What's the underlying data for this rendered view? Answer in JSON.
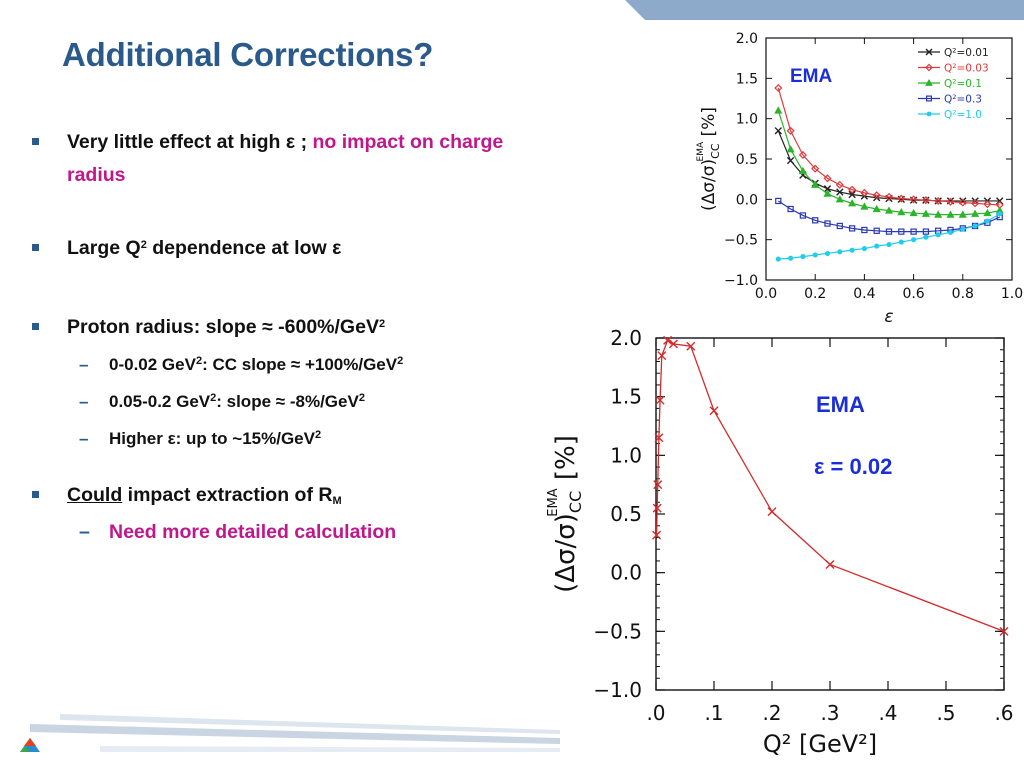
{
  "slide": {
    "title": "Additional Corrections?",
    "accent": "#2a5a8c",
    "highlight": "#c0178d"
  },
  "bullets": {
    "b1_a": "Very little effect at high ",
    "b1_eps": "ε",
    "b1_b": " ; ",
    "b1_mag": "no impact on charge radius",
    "b2_a": "Large Q",
    "b2_sup": "2",
    "b2_b": " dependence at low ",
    "b2_eps": "ε",
    "b3_a": "Proton radius: slope ",
    "b3_approx": "≈",
    "b3_b": " -600%/GeV",
    "b3_sup": "2",
    "s1_a": "0-0.02 GeV",
    "s1_sup": "2",
    "s1_b": ": CC slope ",
    "s1_approx": "≈",
    "s1_c": " +100%/GeV",
    "s1_sup2": "2",
    "s2_a": "0.05-0.2 GeV",
    "s2_sup": "2",
    "s2_b": ":  slope ",
    "s2_approx": "≈",
    "s2_c": " -8%/GeV",
    "s2_sup2": "2",
    "s3_a": "Higher ",
    "s3_eps": "ε",
    "s3_b": ":  up to ~15%/GeV",
    "s3_sup": "2",
    "b4_under": "Could",
    "b4_b": " impact extraction of R",
    "b4_sub": "M",
    "s4": "Need more detailed calculation",
    "dash": "–"
  },
  "chart_data": [
    {
      "type": "line",
      "xlabel": "ε",
      "ylabel": "(Δσ/σ)",
      "ylabel_sub": "CC",
      "ylabel_sup": "EMA",
      "ylabel_unit": "[%]",
      "xlim": [
        0,
        1
      ],
      "ylim": [
        -1,
        2
      ],
      "x_ticks": [
        "0.0",
        "0.2",
        "0.4",
        "0.6",
        "0.8",
        "1.0"
      ],
      "y_ticks": [
        "2.0",
        "1.5",
        "1.0",
        "0.5",
        "0.0",
        "−0.5",
        "−1.0"
      ],
      "annotation": "EMA",
      "legend_position": "top-right",
      "x": [
        0.05,
        0.1,
        0.15,
        0.2,
        0.25,
        0.3,
        0.35,
        0.4,
        0.45,
        0.5,
        0.55,
        0.6,
        0.65,
        0.7,
        0.75,
        0.8,
        0.85,
        0.9,
        0.95
      ],
      "series": [
        {
          "name": "Q²=0.01",
          "color": "#222222",
          "marker": "x",
          "values": [
            0.85,
            0.48,
            0.3,
            0.2,
            0.13,
            0.09,
            0.06,
            0.04,
            0.02,
            0.01,
            0.0,
            -0.01,
            -0.01,
            -0.02,
            -0.02,
            -0.02,
            -0.02,
            -0.02,
            -0.02
          ]
        },
        {
          "name": "Q²=0.03",
          "color": "#e03a3a",
          "marker": "diamond",
          "values": [
            1.38,
            0.85,
            0.55,
            0.38,
            0.26,
            0.18,
            0.12,
            0.08,
            0.05,
            0.03,
            0.01,
            0.0,
            -0.01,
            -0.02,
            -0.03,
            -0.04,
            -0.05,
            -0.06,
            -0.07
          ]
        },
        {
          "name": "Q²=0.1",
          "color": "#2ab52a",
          "marker": "triangle",
          "values": [
            1.1,
            0.62,
            0.35,
            0.18,
            0.07,
            0.0,
            -0.05,
            -0.09,
            -0.12,
            -0.14,
            -0.16,
            -0.17,
            -0.18,
            -0.19,
            -0.19,
            -0.19,
            -0.18,
            -0.17,
            -0.14
          ]
        },
        {
          "name": "Q²=0.3",
          "color": "#2a3ab5",
          "marker": "square",
          "values": [
            -0.02,
            -0.12,
            -0.2,
            -0.26,
            -0.3,
            -0.33,
            -0.36,
            -0.38,
            -0.39,
            -0.4,
            -0.4,
            -0.4,
            -0.4,
            -0.39,
            -0.38,
            -0.36,
            -0.33,
            -0.29,
            -0.22
          ]
        },
        {
          "name": "Q²=1.0",
          "color": "#22ccee",
          "marker": "star",
          "values": [
            -0.74,
            -0.73,
            -0.71,
            -0.69,
            -0.67,
            -0.65,
            -0.63,
            -0.61,
            -0.58,
            -0.56,
            -0.53,
            -0.5,
            -0.47,
            -0.44,
            -0.41,
            -0.37,
            -0.33,
            -0.27,
            -0.18
          ]
        }
      ]
    },
    {
      "type": "line",
      "xlabel": "Q² [GeV²]",
      "ylabel": "(Δσ/σ)",
      "ylabel_sub": "CC",
      "ylabel_sup": "EMA",
      "ylabel_unit": "[%]",
      "xlim": [
        0,
        0.6
      ],
      "ylim": [
        -1,
        2
      ],
      "x_ticks": [
        ".0",
        ".1",
        ".2",
        ".3",
        ".4",
        ".5",
        ".6"
      ],
      "y_ticks": [
        "2.0",
        "1.5",
        "1.0",
        "0.5",
        "0.0",
        "−0.5",
        "−1.0"
      ],
      "annotation": "EMA",
      "annotation2": "ε = 0.02",
      "series": [
        {
          "color": "#d42a2a",
          "marker": "x",
          "x": [
            0.001,
            0.002,
            0.003,
            0.005,
            0.007,
            0.01,
            0.02,
            0.03,
            0.06,
            0.1,
            0.2,
            0.3,
            0.6
          ],
          "values": [
            0.32,
            0.55,
            0.75,
            1.15,
            1.47,
            1.85,
            1.98,
            1.95,
            1.93,
            1.38,
            0.52,
            0.07,
            -0.5
          ]
        }
      ]
    }
  ]
}
